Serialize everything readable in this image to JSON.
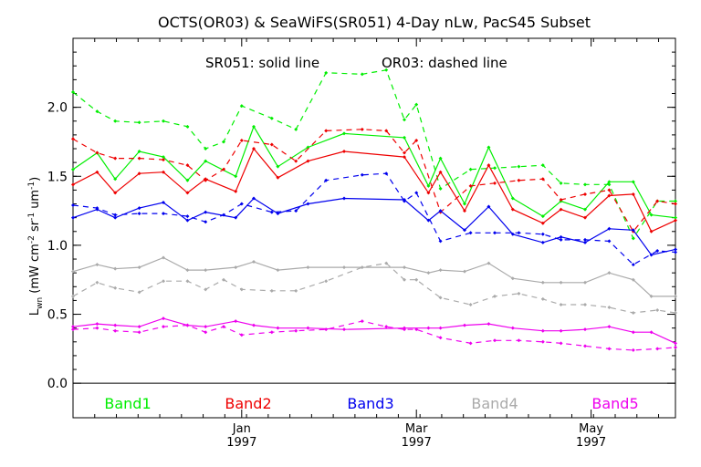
{
  "chart_data": {
    "type": "line",
    "title": "OCTS(OR03) & SeaWiFS(SR051) 4-Day nLw, PacS45 Subset",
    "subtitle_left": "SR051: solid line",
    "subtitle_right": "OR03: dashed line",
    "ylabel_main": "L",
    "ylabel_sub": "wn",
    "ylabel_units": "(mW cm",
    "ylabel_units_parts": [
      "(mW cm",
      "-2",
      " sr",
      "-1",
      " um",
      "-1",
      ")"
    ],
    "ylim": [
      -0.25,
      2.5
    ],
    "yticks": [
      0.0,
      0.5,
      1.0,
      1.5,
      2.0
    ],
    "ytick_labels": [
      "0.0",
      "0.5",
      "1.0",
      "1.5",
      "2.0"
    ],
    "xlim": [
      0,
      100
    ],
    "xticks": [
      {
        "pos": 28,
        "label": "Jan",
        "year": "1997"
      },
      {
        "pos": 57,
        "label": "Mar",
        "year": "1997"
      },
      {
        "pos": 86,
        "label": "May",
        "year": "1997"
      }
    ],
    "grid": false,
    "legend_placement": "bottom",
    "series": [
      {
        "name": "Band1",
        "color": "#00ee00",
        "solid": {
          "x": [
            0,
            4,
            7,
            11,
            15,
            19,
            22,
            27,
            30,
            34,
            39,
            45,
            55,
            59,
            61,
            65,
            69,
            73,
            78,
            81,
            85,
            89,
            93,
            96,
            100
          ],
          "y": [
            1.55,
            1.67,
            1.48,
            1.68,
            1.64,
            1.47,
            1.61,
            1.5,
            1.86,
            1.57,
            1.71,
            1.81,
            1.78,
            1.43,
            1.63,
            1.3,
            1.71,
            1.34,
            1.21,
            1.32,
            1.26,
            1.46,
            1.46,
            1.22,
            1.2
          ]
        },
        "dashed": {
          "x": [
            0,
            4,
            7,
            11,
            15,
            19,
            22,
            25,
            28,
            33,
            37,
            42,
            48,
            52,
            55,
            57,
            61,
            66,
            70,
            74,
            78,
            81,
            85,
            89,
            93,
            97,
            100
          ],
          "y": [
            2.11,
            1.97,
            1.9,
            1.89,
            1.9,
            1.86,
            1.7,
            1.75,
            2.01,
            1.92,
            1.84,
            2.25,
            2.24,
            2.27,
            1.91,
            2.02,
            1.41,
            1.55,
            1.56,
            1.57,
            1.58,
            1.45,
            1.44,
            1.44,
            1.05,
            1.32,
            1.32
          ]
        }
      },
      {
        "name": "Band2",
        "color": "#ee0000",
        "solid": {
          "x": [
            0,
            4,
            7,
            11,
            15,
            19,
            22,
            27,
            30,
            34,
            39,
            45,
            55,
            59,
            61,
            65,
            69,
            73,
            78,
            81,
            85,
            89,
            93,
            96,
            100
          ],
          "y": [
            1.44,
            1.53,
            1.38,
            1.52,
            1.53,
            1.38,
            1.48,
            1.39,
            1.7,
            1.49,
            1.61,
            1.68,
            1.64,
            1.38,
            1.53,
            1.25,
            1.58,
            1.26,
            1.16,
            1.26,
            1.2,
            1.36,
            1.37,
            1.1,
            1.18
          ]
        },
        "dashed": {
          "x": [
            0,
            4,
            7,
            11,
            15,
            19,
            22,
            25,
            28,
            33,
            37,
            42,
            48,
            52,
            55,
            57,
            61,
            66,
            70,
            74,
            78,
            81,
            85,
            89,
            93,
            97,
            100
          ],
          "y": [
            1.77,
            1.67,
            1.63,
            1.63,
            1.62,
            1.58,
            1.47,
            1.55,
            1.76,
            1.73,
            1.61,
            1.83,
            1.84,
            1.83,
            1.67,
            1.76,
            1.24,
            1.43,
            1.45,
            1.47,
            1.48,
            1.33,
            1.37,
            1.4,
            1.1,
            1.32,
            1.3
          ]
        }
      },
      {
        "name": "Band3",
        "color": "#0000ee",
        "solid": {
          "x": [
            0,
            4,
            7,
            11,
            15,
            19,
            22,
            27,
            30,
            34,
            39,
            45,
            55,
            59,
            61,
            65,
            69,
            73,
            78,
            81,
            85,
            89,
            93,
            96,
            100
          ],
          "y": [
            1.2,
            1.26,
            1.2,
            1.27,
            1.31,
            1.18,
            1.24,
            1.2,
            1.34,
            1.23,
            1.3,
            1.34,
            1.33,
            1.18,
            1.25,
            1.11,
            1.28,
            1.08,
            1.02,
            1.06,
            1.02,
            1.12,
            1.11,
            0.93,
            0.97
          ]
        },
        "dashed": {
          "x": [
            0,
            4,
            7,
            11,
            15,
            19,
            22,
            25,
            28,
            33,
            37,
            42,
            48,
            52,
            55,
            57,
            61,
            66,
            70,
            74,
            78,
            81,
            85,
            89,
            93,
            97,
            100
          ],
          "y": [
            1.29,
            1.27,
            1.22,
            1.23,
            1.23,
            1.21,
            1.17,
            1.22,
            1.3,
            1.24,
            1.25,
            1.47,
            1.51,
            1.52,
            1.32,
            1.38,
            1.03,
            1.09,
            1.09,
            1.09,
            1.08,
            1.04,
            1.04,
            1.03,
            0.86,
            0.96,
            0.95
          ]
        }
      },
      {
        "name": "Band4",
        "color": "#aaaaaa",
        "solid": {
          "x": [
            0,
            4,
            7,
            11,
            15,
            19,
            22,
            27,
            30,
            34,
            39,
            45,
            55,
            59,
            61,
            65,
            69,
            73,
            78,
            81,
            85,
            89,
            93,
            96,
            100
          ],
          "y": [
            0.81,
            0.86,
            0.83,
            0.84,
            0.91,
            0.82,
            0.82,
            0.84,
            0.88,
            0.82,
            0.84,
            0.84,
            0.84,
            0.8,
            0.82,
            0.81,
            0.87,
            0.76,
            0.73,
            0.73,
            0.73,
            0.8,
            0.75,
            0.63,
            0.63
          ]
        },
        "dashed": {
          "x": [
            0,
            4,
            7,
            11,
            15,
            19,
            22,
            25,
            28,
            33,
            37,
            42,
            48,
            52,
            55,
            57,
            61,
            66,
            70,
            74,
            78,
            81,
            85,
            89,
            93,
            97,
            100
          ],
          "y": [
            0.63,
            0.73,
            0.69,
            0.66,
            0.74,
            0.74,
            0.68,
            0.75,
            0.68,
            0.67,
            0.67,
            0.74,
            0.84,
            0.87,
            0.75,
            0.75,
            0.62,
            0.57,
            0.63,
            0.65,
            0.61,
            0.57,
            0.57,
            0.55,
            0.51,
            0.53,
            0.51
          ]
        }
      },
      {
        "name": "Band5",
        "color": "#ee00ee",
        "solid": {
          "x": [
            0,
            4,
            7,
            11,
            15,
            19,
            22,
            27,
            30,
            34,
            39,
            45,
            55,
            59,
            61,
            65,
            69,
            73,
            78,
            81,
            85,
            89,
            93,
            96,
            100
          ],
          "y": [
            0.41,
            0.43,
            0.42,
            0.41,
            0.47,
            0.42,
            0.41,
            0.45,
            0.42,
            0.4,
            0.4,
            0.39,
            0.4,
            0.4,
            0.4,
            0.42,
            0.43,
            0.4,
            0.38,
            0.38,
            0.39,
            0.41,
            0.37,
            0.37,
            0.29
          ]
        },
        "dashed": {
          "x": [
            0,
            4,
            7,
            11,
            15,
            19,
            22,
            25,
            28,
            33,
            37,
            42,
            48,
            52,
            55,
            57,
            61,
            66,
            70,
            74,
            78,
            81,
            85,
            89,
            93,
            97,
            100
          ],
          "y": [
            0.39,
            0.4,
            0.38,
            0.37,
            0.41,
            0.42,
            0.37,
            0.41,
            0.35,
            0.37,
            0.38,
            0.39,
            0.45,
            0.41,
            0.39,
            0.39,
            0.33,
            0.29,
            0.31,
            0.31,
            0.3,
            0.29,
            0.27,
            0.25,
            0.24,
            0.25,
            0.26
          ]
        }
      }
    ]
  }
}
